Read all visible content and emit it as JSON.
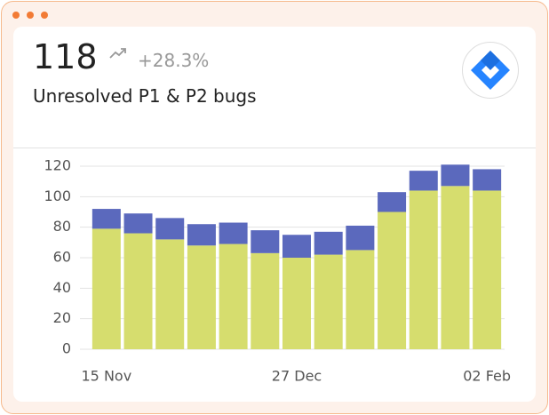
{
  "header": {
    "value": "118",
    "change": "+28.3%",
    "title": "Unresolved P1 & P2 bugs"
  },
  "chart_data": {
    "type": "stacked_bar",
    "categories": [
      "15 Nov",
      null,
      null,
      null,
      null,
      null,
      "27 Dec",
      null,
      null,
      null,
      null,
      null,
      "02 Feb"
    ],
    "series": [
      {
        "color": "#d6dd6e",
        "values": [
          79,
          76,
          72,
          68,
          69,
          63,
          60,
          62,
          65,
          90,
          104,
          107,
          104
        ]
      },
      {
        "color": "#5b69bd",
        "values": [
          13,
          13,
          14,
          14,
          14,
          15,
          15,
          15,
          16,
          13,
          13,
          14,
          14
        ]
      }
    ],
    "ylim": [
      0,
      120
    ],
    "yticks": [
      0,
      20,
      40,
      60,
      80,
      100,
      120
    ],
    "grid": true
  }
}
